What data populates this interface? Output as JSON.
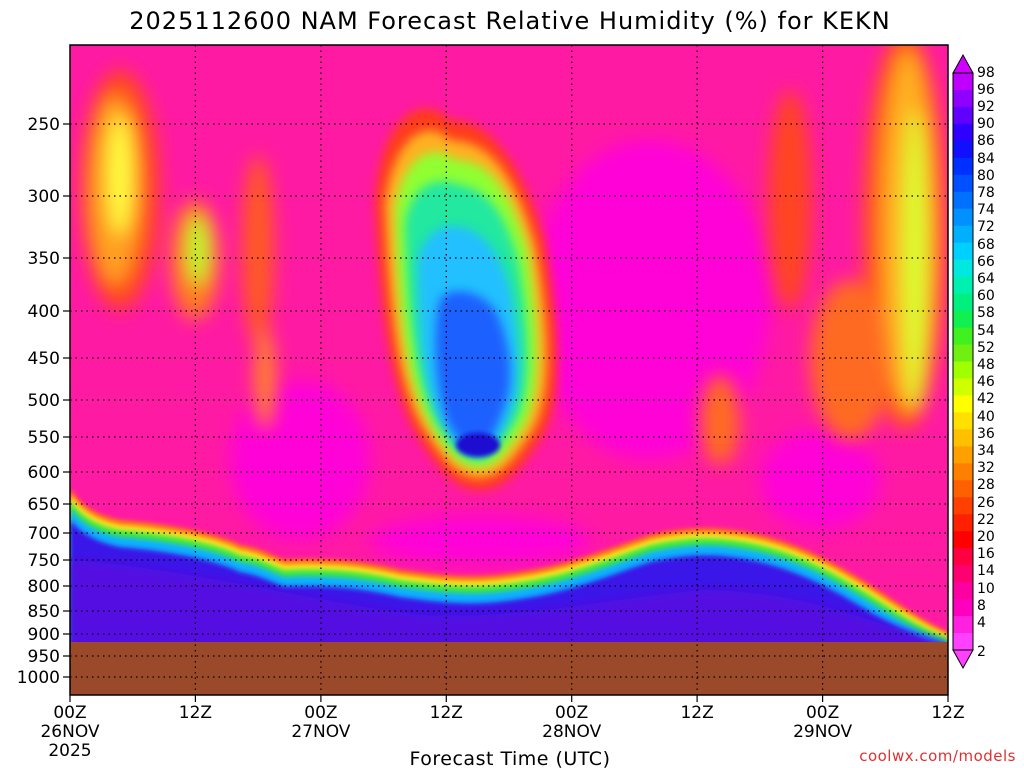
{
  "chart_data": {
    "type": "heatmap",
    "title": "2025112600 NAM Forecast Relative Humidity (%) for KEKN",
    "xlabel": "Forecast Time (UTC)",
    "ylabel": "",
    "credit": "coolwx.com/models",
    "x_range": [
      "2025-11-26 00Z",
      "2025-11-29 12Z"
    ],
    "y_range_hpa": [
      1050,
      200
    ],
    "grid": true,
    "ground_level_hpa": 920,
    "y_ticks": [
      "250",
      "300",
      "350",
      "400",
      "450",
      "500",
      "550",
      "600",
      "650",
      "700",
      "750",
      "800",
      "850",
      "900",
      "950",
      "1000"
    ],
    "x_ticks": [
      {
        "line1": "00Z",
        "line2": "26NOV",
        "line3": "2025"
      },
      {
        "line1": "12Z",
        "line2": "",
        "line3": ""
      },
      {
        "line1": "00Z",
        "line2": "27NOV",
        "line3": ""
      },
      {
        "line1": "12Z",
        "line2": "",
        "line3": ""
      },
      {
        "line1": "00Z",
        "line2": "28NOV",
        "line3": ""
      },
      {
        "line1": "12Z",
        "line2": "",
        "line3": ""
      },
      {
        "line1": "00Z",
        "line2": "29NOV",
        "line3": ""
      },
      {
        "line1": "12Z",
        "line2": "",
        "line3": ""
      }
    ],
    "colorbar_labels": [
      "98",
      "96",
      "92",
      "90",
      "86",
      "84",
      "80",
      "78",
      "74",
      "72",
      "68",
      "66",
      "64",
      "60",
      "58",
      "54",
      "52",
      "48",
      "46",
      "42",
      "40",
      "36",
      "34",
      "32",
      "28",
      "26",
      "22",
      "20",
      "16",
      "14",
      "10",
      "8",
      "4",
      "2"
    ],
    "features": [
      {
        "name": "moist layer (low levels)",
        "rh": "90-98",
        "hpa": "700-920",
        "time": "00Z 26NOV - 12Z 29NOV"
      },
      {
        "name": "moist mid-level region",
        "rh": "56-86",
        "hpa": "270-610",
        "time": "~06Z 27NOV - 19Z 27NOV"
      },
      {
        "name": "dry air aloft",
        "rh": "2-20",
        "hpa": "200-700",
        "time": "most of period"
      }
    ]
  }
}
